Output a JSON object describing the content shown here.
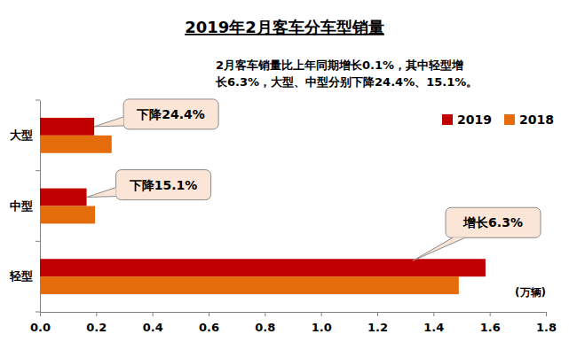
{
  "chart_data": {
    "type": "bar",
    "orientation": "horizontal",
    "title": "2019年2月客车分车型销量",
    "subtitle": [
      "2月客车销量比上年同期增长0.1%，其中轻型增",
      "长6.3%，大型、中型分别下降24.4%、15.1%。"
    ],
    "categories": [
      "大型",
      "中型",
      "轻型"
    ],
    "series": [
      {
        "name": "2019",
        "color": "#C00000",
        "values": [
          0.193,
          0.166,
          1.585
        ]
      },
      {
        "name": "2018",
        "color": "#E46C0A",
        "values": [
          0.255,
          0.196,
          1.49
        ]
      }
    ],
    "xlim": [
      0,
      1.8
    ],
    "xticks": [
      {
        "value": 0,
        "label": "0.0"
      },
      0.2,
      0.4,
      0.6,
      0.8,
      {
        "value": 1,
        "label": "1.0"
      },
      1.2,
      1.4,
      1.6,
      1.8
    ],
    "xlabel": "(万辆)",
    "annotations": [
      "下降24.4%",
      "下降15.1%",
      "增长6.3%"
    ],
    "legend": "upper right",
    "grid": false
  }
}
